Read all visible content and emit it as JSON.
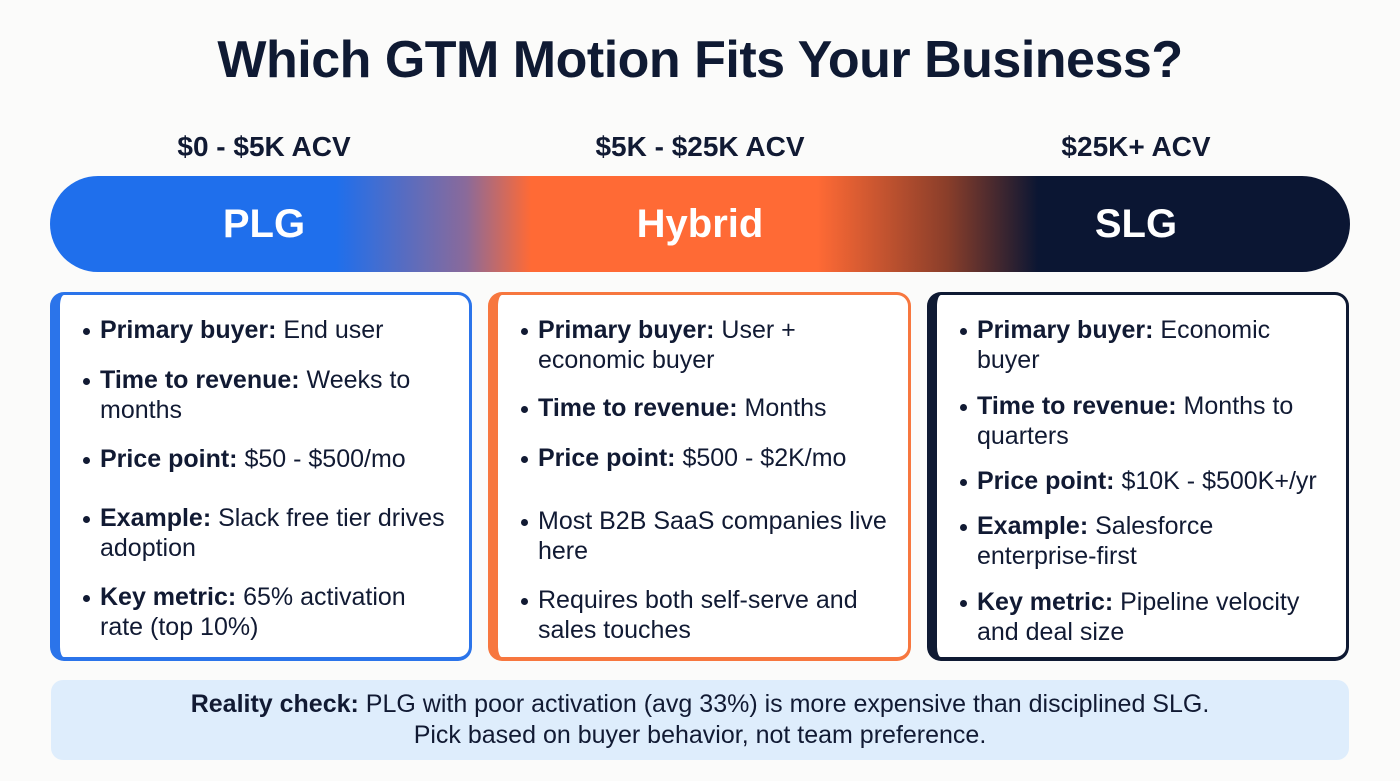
{
  "title": "Which GTM Motion Fits Your Business?",
  "colors": {
    "plg": "#1f6fec",
    "hybrid": "#ff6a35",
    "slg": "#0b1633",
    "footer_bg": "#deedfc",
    "text": "#111a33"
  },
  "motions": [
    {
      "acv": "$0 - $5K ACV",
      "label": "PLG",
      "items": [
        {
          "key": "Primary buyer:",
          "value": " End user"
        },
        {
          "key": "Time to revenue:",
          "value": " Weeks to months"
        },
        {
          "key": "Price point:",
          "value": " $50 - $500/mo"
        },
        {
          "key": "Example:",
          "value": " Slack free tier drives adoption"
        },
        {
          "key": "Key metric:",
          "value": " 65% activation rate (top 10%)"
        }
      ]
    },
    {
      "acv": "$5K - $25K ACV",
      "label": "Hybrid",
      "items": [
        {
          "key": "Primary buyer:",
          "value": " User + economic buyer"
        },
        {
          "key": "Time to revenue:",
          "value": " Months"
        },
        {
          "key": "Price point:",
          "value": " $500 - $2K/mo"
        },
        {
          "key": "",
          "value": "Most B2B SaaS companies live here"
        },
        {
          "key": "",
          "value": "Requires both self-serve and sales touches"
        }
      ]
    },
    {
      "acv": "$25K+ ACV",
      "label": "SLG",
      "items": [
        {
          "key": "Primary buyer:",
          "value": " Economic buyer"
        },
        {
          "key": "Time to revenue:",
          "value": " Months to quarters"
        },
        {
          "key": "Price point:",
          "value": " $10K - $500K+/yr"
        },
        {
          "key": "Example:",
          "value": " Salesforce enterprise-first"
        },
        {
          "key": "Key metric:",
          "value": " Pipeline velocity and deal size"
        }
      ]
    }
  ],
  "footer": {
    "label": "Reality check:",
    "line1": " PLG with poor activation (avg 33%) is more expensive than disciplined SLG.",
    "line2": "Pick based on buyer behavior, not team preference."
  }
}
